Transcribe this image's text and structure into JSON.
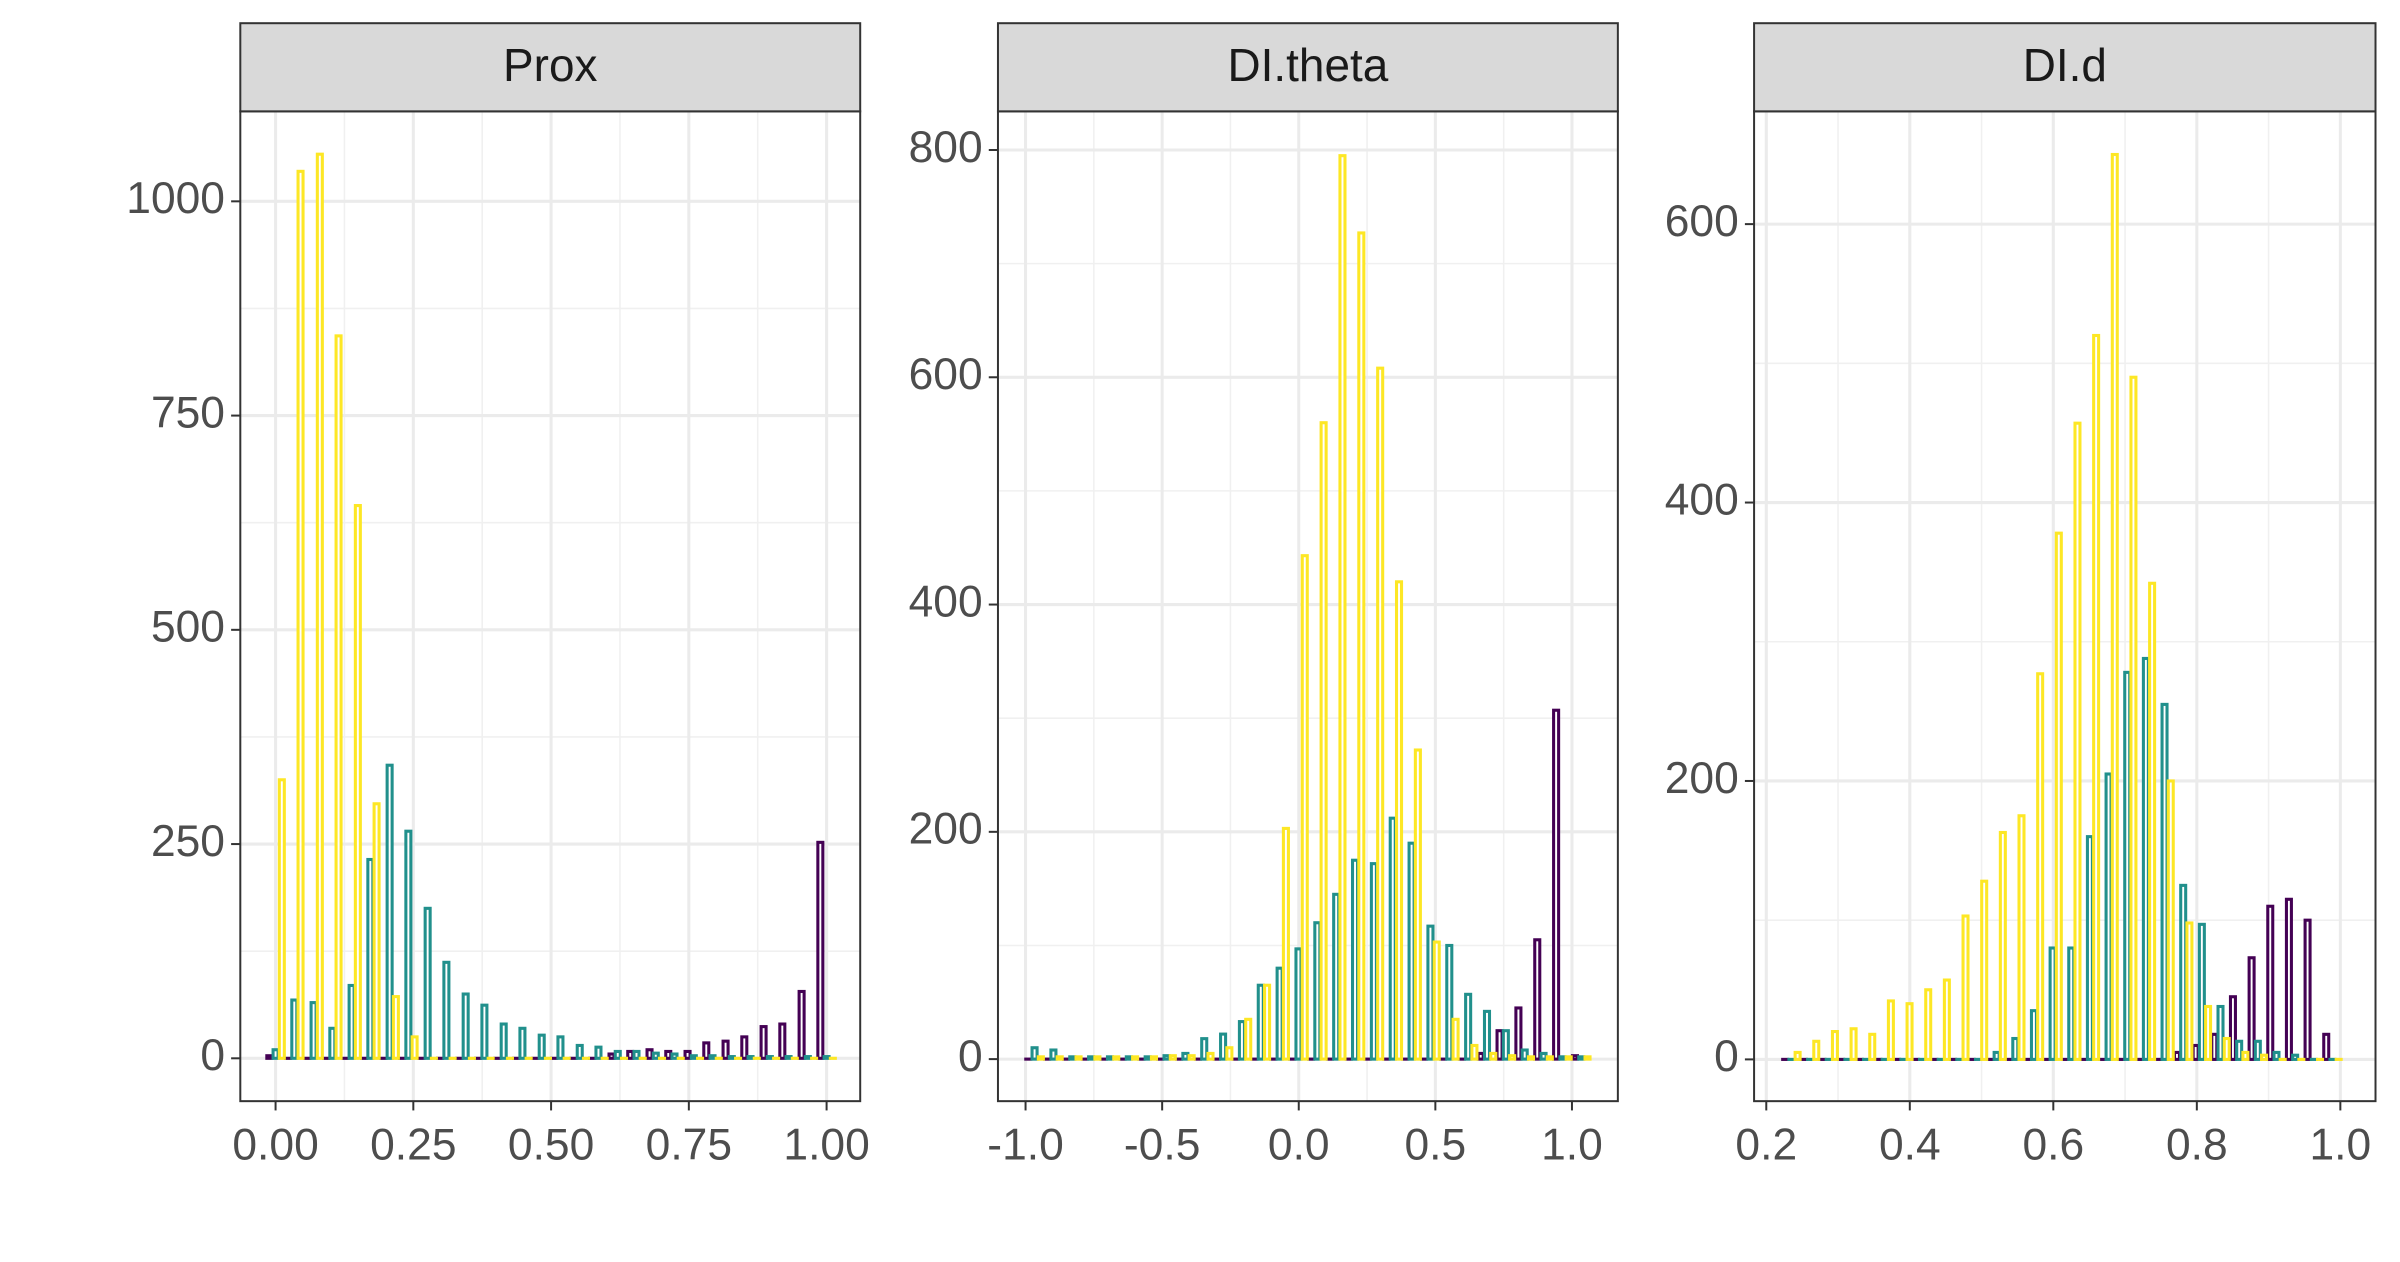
{
  "chart_data": [
    {
      "type": "bar",
      "title": "Prox",
      "x": [
        0,
        0.034,
        0.069,
        0.103,
        0.138,
        0.172,
        0.207,
        0.241,
        0.276,
        0.31,
        0.345,
        0.379,
        0.414,
        0.448,
        0.483,
        0.517,
        0.552,
        0.586,
        0.621,
        0.655,
        0.69,
        0.724,
        0.759,
        0.793,
        0.828,
        0.862,
        0.897,
        0.931,
        0.966,
        1.0
      ],
      "series": [
        {
          "color": "#440154",
          "values": [
            3,
            0,
            0,
            0,
            0,
            0,
            0,
            0,
            0,
            0,
            0,
            0,
            0,
            0,
            0,
            0,
            0,
            0,
            5,
            8,
            10,
            8,
            8,
            18,
            20,
            25,
            37,
            40,
            78,
            252
          ]
        },
        {
          "color": "#21908C",
          "values": [
            10,
            68,
            65,
            35,
            85,
            232,
            342,
            265,
            175,
            112,
            75,
            62,
            40,
            35,
            27,
            25,
            15,
            13,
            8,
            8,
            6,
            5,
            3,
            3,
            2,
            2,
            2,
            2,
            2,
            2
          ]
        },
        {
          "color": "#FDE725",
          "values": [
            325,
            1035,
            1055,
            843,
            645,
            297,
            72,
            25,
            0,
            0,
            0,
            0,
            0,
            0,
            0,
            0,
            0,
            0,
            0,
            0,
            0,
            0,
            0,
            0,
            0,
            0,
            0,
            0,
            0,
            0
          ]
        }
      ],
      "xlim": [
        -0.064,
        1.061
      ],
      "ylim": [
        -50,
        1105
      ],
      "xticks": [
        {
          "value": 0,
          "label": "0.00"
        },
        {
          "value": 0.25,
          "label": "0.25"
        },
        {
          "value": 0.5,
          "label": "0.50"
        },
        {
          "value": 0.75,
          "label": "0.75"
        },
        {
          "value": 1,
          "label": "1.00"
        }
      ],
      "yticks": [
        0,
        250,
        500,
        750,
        1000
      ],
      "grid": true
    },
    {
      "type": "bar",
      "title": "DI.theta",
      "x": [
        -0.967,
        -0.898,
        -0.829,
        -0.76,
        -0.691,
        -0.622,
        -0.553,
        -0.484,
        -0.415,
        -0.346,
        -0.277,
        -0.208,
        -0.139,
        -0.07,
        -0.001,
        0.068,
        0.137,
        0.206,
        0.275,
        0.344,
        0.413,
        0.482,
        0.551,
        0.62,
        0.689,
        0.758,
        0.827,
        0.896,
        0.965,
        1.034
      ],
      "series": [
        {
          "color": "#440154",
          "values": [
            0,
            0,
            0,
            0,
            0,
            0,
            0,
            0,
            0,
            0,
            0,
            0,
            0,
            0,
            0,
            0,
            0,
            0,
            0,
            0,
            0,
            0,
            0,
            0,
            5,
            25,
            45,
            105,
            307,
            3
          ]
        },
        {
          "color": "#21908C",
          "values": [
            10,
            8,
            2,
            2,
            2,
            2,
            2,
            3,
            5,
            18,
            22,
            33,
            65,
            80,
            97,
            120,
            145,
            175,
            172,
            212,
            190,
            117,
            100,
            57,
            42,
            25,
            8,
            5,
            2,
            2
          ]
        },
        {
          "color": "#FDE725",
          "values": [
            2,
            2,
            2,
            2,
            2,
            2,
            2,
            3,
            3,
            5,
            10,
            35,
            65,
            203,
            443,
            560,
            795,
            727,
            608,
            420,
            272,
            103,
            35,
            12,
            5,
            3,
            2,
            2,
            2,
            2
          ]
        }
      ],
      "xlim": [
        -1.101,
        1.168
      ],
      "ylim": [
        -37,
        834
      ],
      "xticks": [
        {
          "value": -1,
          "label": "-1.0"
        },
        {
          "value": -0.5,
          "label": "-0.5"
        },
        {
          "value": 0,
          "label": "0.0"
        },
        {
          "value": 0.5,
          "label": "0.5"
        },
        {
          "value": 1,
          "label": "1.0"
        }
      ],
      "yticks": [
        0,
        200,
        400,
        600,
        800
      ],
      "grid": true
    },
    {
      "type": "bar",
      "title": "DI.d",
      "x": [
        0.235,
        0.261,
        0.287,
        0.313,
        0.339,
        0.365,
        0.391,
        0.417,
        0.443,
        0.469,
        0.495,
        0.521,
        0.547,
        0.573,
        0.599,
        0.625,
        0.651,
        0.677,
        0.703,
        0.729,
        0.755,
        0.781,
        0.807,
        0.833,
        0.859,
        0.885,
        0.911,
        0.937,
        0.963,
        0.989
      ],
      "series": [
        {
          "color": "#440154",
          "values": [
            0,
            0,
            0,
            0,
            0,
            0,
            0,
            0,
            0,
            0,
            0,
            0,
            0,
            0,
            0,
            0,
            0,
            0,
            0,
            0,
            0,
            5,
            10,
            18,
            45,
            73,
            110,
            115,
            100,
            18
          ]
        },
        {
          "color": "#21908C",
          "values": [
            0,
            0,
            0,
            0,
            0,
            0,
            0,
            0,
            0,
            0,
            0,
            5,
            15,
            35,
            80,
            80,
            160,
            205,
            278,
            288,
            255,
            125,
            97,
            38,
            13,
            13,
            5,
            3,
            0,
            0
          ]
        },
        {
          "color": "#FDE725",
          "values": [
            5,
            13,
            20,
            22,
            18,
            42,
            40,
            50,
            57,
            103,
            128,
            163,
            175,
            277,
            378,
            457,
            520,
            650,
            490,
            342,
            200,
            98,
            38,
            15,
            5,
            3,
            0,
            0,
            0,
            0
          ]
        }
      ],
      "xlim": [
        0.183,
        1.049
      ],
      "ylim": [
        -30,
        681
      ],
      "xticks": [
        {
          "value": 0.2,
          "label": "0.2"
        },
        {
          "value": 0.4,
          "label": "0.4"
        },
        {
          "value": 0.6,
          "label": "0.6"
        },
        {
          "value": 0.8,
          "label": "0.8"
        },
        {
          "value": 1,
          "label": "1.0"
        }
      ],
      "yticks": [
        0,
        200,
        400,
        600
      ],
      "grid": true
    }
  ]
}
